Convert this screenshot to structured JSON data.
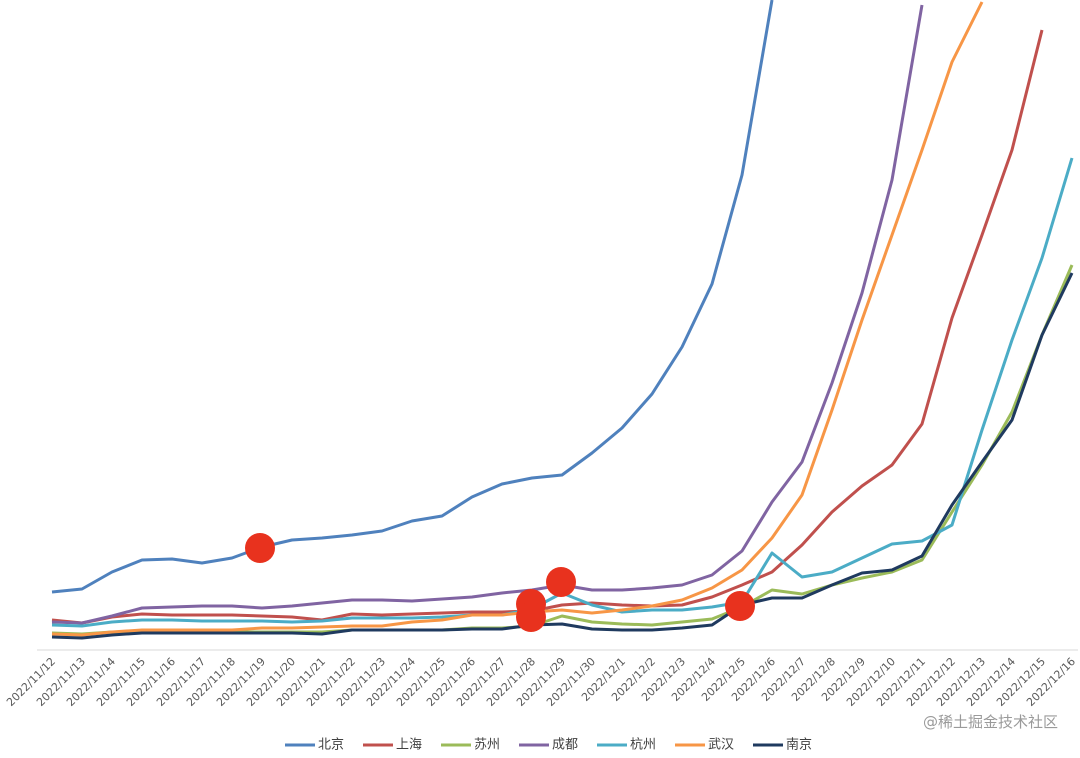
{
  "chart_data": {
    "type": "line",
    "categories": [
      "2022/11/12",
      "2022/11/13",
      "2022/11/14",
      "2022/11/15",
      "2022/11/16",
      "2022/11/17",
      "2022/11/18",
      "2022/11/19",
      "2022/11/20",
      "2022/11/21",
      "2022/11/22",
      "2022/11/23",
      "2022/11/24",
      "2022/11/25",
      "2022/11/26",
      "2022/11/27",
      "2022/11/28",
      "2022/11/29",
      "2022/11/30",
      "2022/12/1",
      "2022/12/2",
      "2022/12/3",
      "2022/12/4",
      "2022/12/5",
      "2022/12/6",
      "2022/12/7",
      "2022/12/8",
      "2022/12/9",
      "2022/12/10",
      "2022/12/11",
      "2022/12/12",
      "2022/12/13",
      "2022/12/14",
      "2022/12/15",
      "2022/12/16"
    ],
    "ylim": [
      0,
      650
    ],
    "legend": "bottom",
    "watermark": "@稀土掘金技术社区",
    "series": [
      {
        "name": "北京",
        "color": "#4f81bd",
        "values": [
          58,
          61,
          78,
          90,
          91,
          87,
          92,
          103,
          110,
          112,
          115,
          119,
          129,
          134,
          153,
          166,
          172,
          175,
          197,
          222,
          256,
          303,
          366,
          475,
          650,
          null,
          null,
          null,
          null,
          null,
          null,
          null,
          null,
          null,
          null
        ]
      },
      {
        "name": "上海",
        "color": "#c0504d",
        "values": [
          30,
          27,
          33,
          36,
          35,
          35,
          35,
          34,
          33,
          30,
          36,
          35,
          36,
          37,
          38,
          38,
          39,
          45,
          47,
          45,
          44,
          45,
          53,
          65,
          78,
          105,
          138,
          164,
          185,
          226,
          332,
          415,
          500,
          620,
          null
        ]
      },
      {
        "name": "苏州",
        "color": "#9bbb59",
        "values": [
          17,
          16,
          18,
          18,
          18,
          18,
          18,
          18,
          18,
          18,
          20,
          20,
          20,
          20,
          22,
          22,
          24,
          34,
          28,
          26,
          25,
          28,
          31,
          43,
          60,
          56,
          65,
          72,
          78,
          90,
          138,
          185,
          238,
          315,
          385
        ]
      },
      {
        "name": "成都",
        "color": "#8064a2",
        "values": [
          28,
          27,
          34,
          42,
          43,
          44,
          44,
          42,
          44,
          47,
          50,
          50,
          49,
          51,
          53,
          57,
          60,
          65,
          60,
          60,
          62,
          65,
          75,
          99,
          148,
          188,
          267,
          357,
          470,
          645,
          null,
          null,
          null,
          null,
          null
        ]
      },
      {
        "name": "杭州",
        "color": "#4bacc6",
        "values": [
          25,
          24,
          28,
          30,
          30,
          29,
          29,
          29,
          28,
          29,
          32,
          32,
          32,
          33,
          35,
          35,
          41,
          57,
          45,
          38,
          40,
          40,
          43,
          48,
          97,
          73,
          78,
          92,
          106,
          109,
          125,
          220,
          310,
          392,
          492
        ]
      },
      {
        "name": "武汉",
        "color": "#f79646",
        "values": [
          16,
          15,
          18,
          20,
          20,
          20,
          20,
          22,
          22,
          23,
          24,
          24,
          28,
          30,
          35,
          35,
          38,
          40,
          37,
          40,
          44,
          50,
          62,
          80,
          112,
          155,
          240,
          330,
          415,
          500,
          588,
          648,
          null,
          null,
          null
        ]
      },
      {
        "name": "南京",
        "color": "#1f3a5f",
        "values": [
          13,
          12,
          15,
          17,
          17,
          17,
          17,
          17,
          17,
          16,
          20,
          20,
          20,
          20,
          21,
          21,
          25,
          26,
          21,
          20,
          20,
          22,
          25,
          45,
          52,
          52,
          65,
          77,
          80,
          94,
          145,
          188,
          230,
          315,
          377
        ]
      }
    ]
  }
}
